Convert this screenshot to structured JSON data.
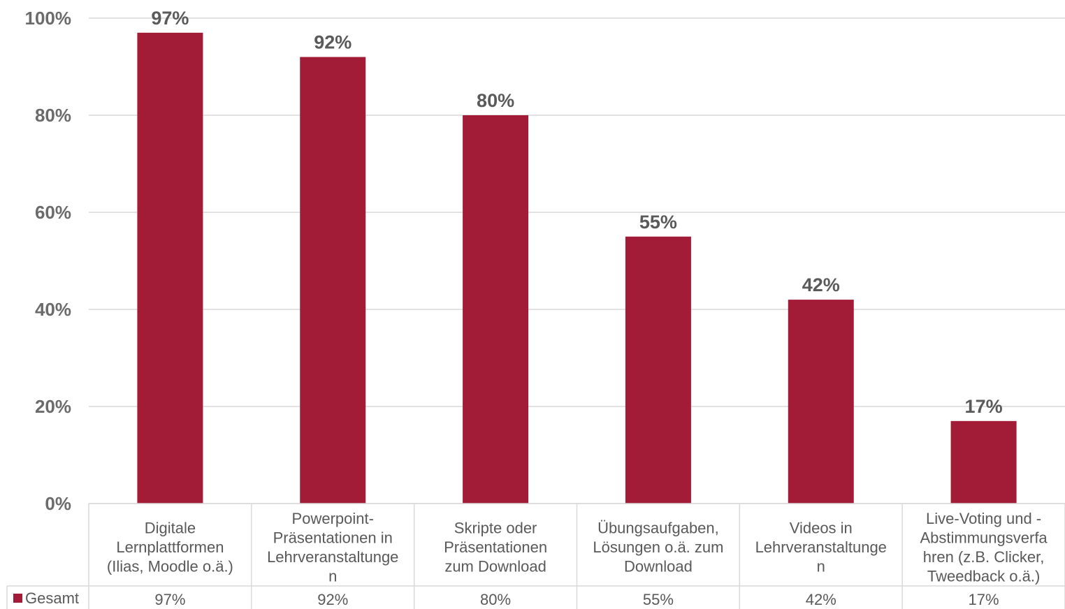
{
  "chart_data": {
    "type": "bar",
    "categories": [
      [
        "Digitale",
        "Lernplattformen",
        "(Ilias, Moodle o.ä.)"
      ],
      [
        "Powerpoint-",
        "Präsentationen in",
        "Lehrveranstaltunge",
        "n"
      ],
      [
        "Skripte oder",
        "Präsentationen",
        "zum Download"
      ],
      [
        "Übungsaufgaben,",
        "Lösungen o.ä. zum",
        "Download"
      ],
      [
        "Videos in",
        "Lehrveranstaltunge",
        "n"
      ],
      [
        "Live-Voting und -",
        "Abstimmungsverfa",
        "hren (z.B. Clicker,",
        "Tweedback o.ä.)"
      ]
    ],
    "series": [
      {
        "name": "Gesamt",
        "values": [
          97,
          92,
          80,
          55,
          42,
          17
        ],
        "labels": [
          "97%",
          "92%",
          "80%",
          "55%",
          "42%",
          "17%"
        ],
        "color": "#a31c37"
      }
    ],
    "yticks": [
      "0%",
      "20%",
      "40%",
      "60%",
      "80%",
      "100%"
    ],
    "ylim": [
      0,
      100
    ],
    "grid": true,
    "legend": "data-table-left",
    "data_table": true
  }
}
